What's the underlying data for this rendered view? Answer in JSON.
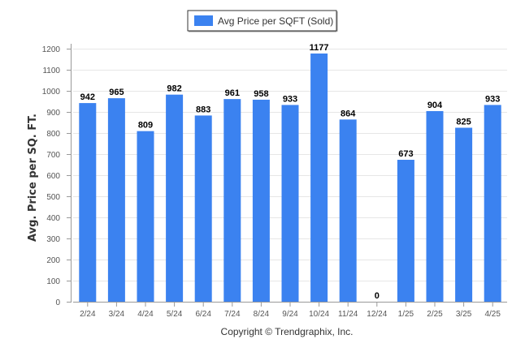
{
  "chart_data": {
    "type": "bar",
    "categories": [
      "2/24",
      "3/24",
      "4/24",
      "5/24",
      "6/24",
      "7/24",
      "8/24",
      "9/24",
      "10/24",
      "11/24",
      "12/24",
      "1/25",
      "2/25",
      "3/25",
      "4/25"
    ],
    "series": [
      {
        "name": "Avg Price per SQFT (Sold)",
        "values": [
          942,
          965,
          809,
          982,
          883,
          961,
          958,
          933,
          1177,
          864,
          0,
          673,
          904,
          825,
          933
        ],
        "color": "#3b82f0"
      }
    ],
    "value_labels": [
      "942",
      "965",
      "809",
      "982",
      "883",
      "961",
      "958",
      "933",
      "1177",
      "864",
      "0",
      "673",
      "904",
      "825",
      "933"
    ],
    "ylabel": "Avg. Price per SQ. FT.",
    "xlabel": "",
    "ylim": [
      0,
      1200
    ],
    "yticks": [
      0,
      100,
      200,
      300,
      400,
      500,
      600,
      700,
      800,
      900,
      1000,
      1100,
      1200
    ],
    "ytick_labels": [
      "0",
      "100",
      "200",
      "300",
      "400",
      "500",
      "600",
      "700",
      "800",
      "900",
      "1000",
      "1100",
      "1200"
    ],
    "grid": true,
    "legend_position": "top-center"
  },
  "footer": {
    "copyright": "Copyright © Trendgraphix, Inc."
  }
}
